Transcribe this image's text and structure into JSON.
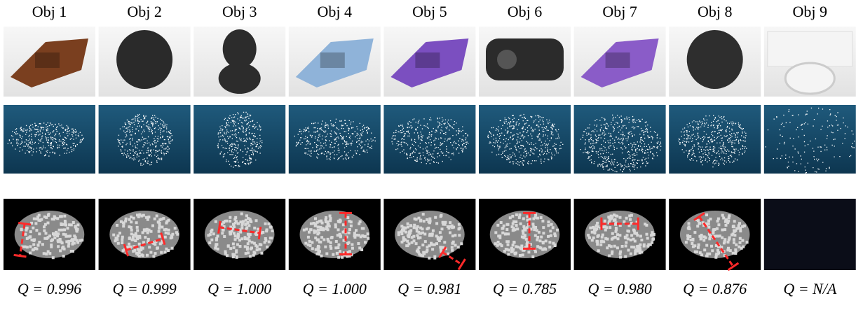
{
  "columns": [
    {
      "name": "Obj 1",
      "quality": "Q = 0.996"
    },
    {
      "name": "Obj 2",
      "quality": "Q = 0.999"
    },
    {
      "name": "Obj 3",
      "quality": "Q = 1.000"
    },
    {
      "name": "Obj 4",
      "quality": "Q = 1.000"
    },
    {
      "name": "Obj 5",
      "quality": "Q = 0.981"
    },
    {
      "name": "Obj 6",
      "quality": "Q = 0.785"
    },
    {
      "name": "Obj 7",
      "quality": "Q = 0.980"
    },
    {
      "name": "Obj 8",
      "quality": "Q = 0.876"
    },
    {
      "name": "Obj 9",
      "quality": "Q = N/A"
    }
  ]
}
